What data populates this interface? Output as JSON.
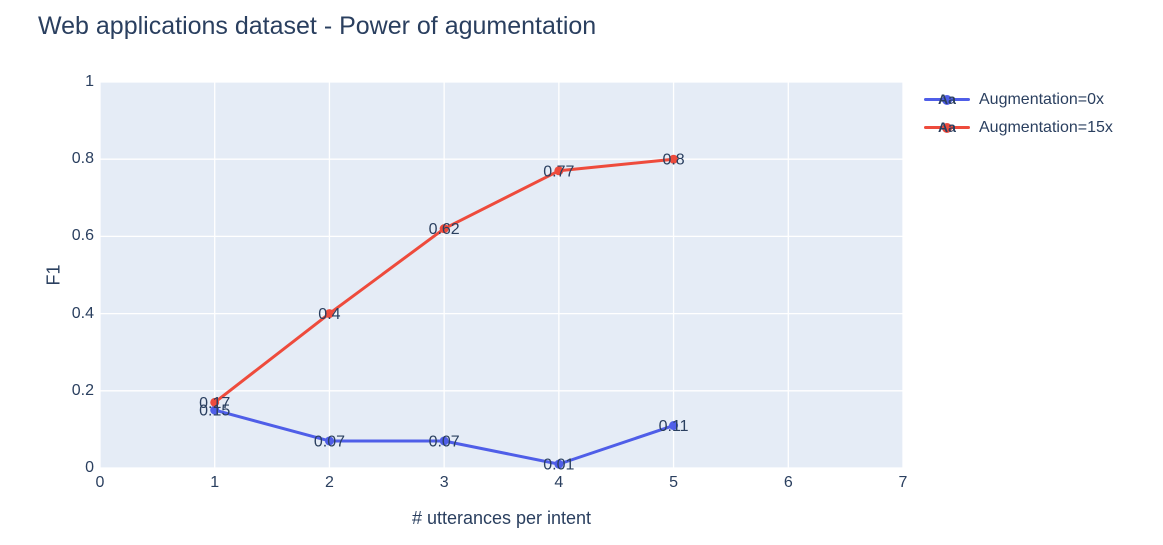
{
  "chart_data": {
    "type": "line",
    "title": "Web applications dataset - Power of agumentation",
    "xlabel": "# utterances per intent",
    "ylabel": "F1",
    "xlim": [
      0,
      7
    ],
    "ylim": [
      0,
      1
    ],
    "grid": true,
    "legend_position": "top-right-outside",
    "legend_sample_text": "Aa",
    "xticks": [
      0,
      1,
      2,
      3,
      4,
      5,
      6,
      7
    ],
    "xtick_labels": [
      "0",
      "1",
      "2",
      "3",
      "4",
      "5",
      "6",
      "7"
    ],
    "yticks": [
      0,
      0.2,
      0.4,
      0.6,
      0.8,
      1
    ],
    "ytick_labels": [
      "0",
      "0.2",
      "0.4",
      "0.6",
      "0.8",
      "1"
    ],
    "x": [
      1,
      2,
      3,
      4,
      5
    ],
    "series": [
      {
        "name": "Augmentation=0x",
        "color": "#4f5ee8",
        "values": [
          0.15,
          0.07,
          0.07,
          0.01,
          0.11
        ],
        "labels": [
          "0.15",
          "0.07",
          "0.07",
          "0.01",
          "0.11"
        ]
      },
      {
        "name": "Augmentation=15x",
        "color": "#ee4b3c",
        "values": [
          0.17,
          0.4,
          0.62,
          0.77,
          0.8
        ],
        "labels": [
          "0.17",
          "0.4",
          "0.62",
          "0.77",
          "0.8"
        ]
      }
    ],
    "colors": {
      "text": "#2a3f5f",
      "plot_bg": "#e5ecf6",
      "grid": "#ffffff"
    }
  }
}
